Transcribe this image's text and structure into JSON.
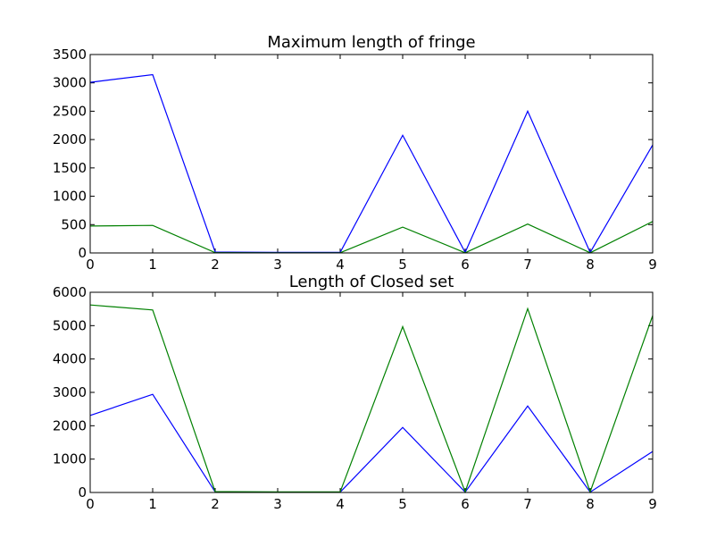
{
  "chart_data": [
    {
      "type": "line",
      "title": "Maximum length of fringe",
      "xlabel": "",
      "ylabel": "",
      "xlim": [
        0,
        9
      ],
      "ylim": [
        0,
        3500
      ],
      "xticks": [
        0,
        1,
        2,
        3,
        4,
        5,
        6,
        7,
        8,
        9
      ],
      "yticks": [
        0,
        500,
        1000,
        1500,
        2000,
        2500,
        3000,
        3500
      ],
      "grid": false,
      "x": [
        0,
        1,
        2,
        3,
        4,
        5,
        6,
        7,
        8,
        9
      ],
      "series": [
        {
          "color": "#0000ff",
          "values": [
            3010,
            3145,
            15,
            10,
            10,
            2075,
            10,
            2500,
            10,
            1905
          ]
        },
        {
          "color": "#008000",
          "values": [
            475,
            485,
            5,
            3,
            3,
            455,
            3,
            510,
            3,
            555
          ]
        }
      ]
    },
    {
      "type": "line",
      "title": "Length of Closed set",
      "xlabel": "",
      "ylabel": "",
      "xlim": [
        0,
        9
      ],
      "ylim": [
        0,
        6000
      ],
      "xticks": [
        0,
        1,
        2,
        3,
        4,
        5,
        6,
        7,
        8,
        9
      ],
      "yticks": [
        0,
        1000,
        2000,
        3000,
        4000,
        5000,
        6000
      ],
      "grid": false,
      "x": [
        0,
        1,
        2,
        3,
        4,
        5,
        6,
        7,
        8,
        9
      ],
      "series": [
        {
          "color": "#0000ff",
          "values": [
            2310,
            2940,
            15,
            10,
            10,
            1950,
            10,
            2590,
            10,
            1230
          ]
        },
        {
          "color": "#008000",
          "values": [
            5620,
            5470,
            25,
            20,
            20,
            4970,
            20,
            5510,
            20,
            5300
          ]
        }
      ]
    }
  ]
}
